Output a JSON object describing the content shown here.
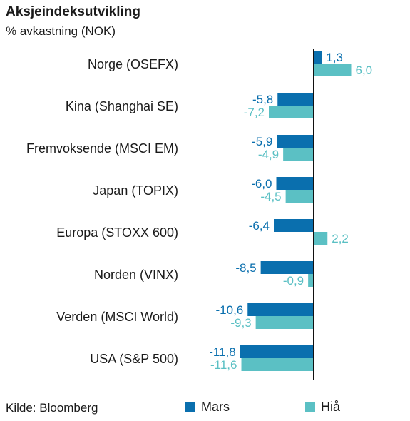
{
  "title": "Aksjeindeksutvikling",
  "subtitle": "% avkastning (NOK)",
  "source": "Kilde: Bloomberg",
  "colors": {
    "mars": "#0a6fae",
    "hia": "#5bc0c4",
    "axis": "#111111"
  },
  "chart_data": {
    "type": "bar",
    "orientation": "horizontal",
    "categories": [
      "Norge (OSEFX)",
      "Kina (Shanghai SE)",
      "Fremvoksende (MSCI EM)",
      "Japan (TOPIX)",
      "Europa (STOXX 600)",
      "Norden (VINX)",
      "Verden (MSCI World)",
      "USA (S&P 500)"
    ],
    "series": [
      {
        "name": "Mars",
        "values": [
          1.3,
          -5.8,
          -5.9,
          -6.0,
          -6.4,
          -8.5,
          -10.6,
          -11.8
        ],
        "labels": [
          "1,3",
          "-5,8",
          "-5,9",
          "-6,0",
          "-6,4",
          "-8,5",
          "-10,6",
          "-11,8"
        ]
      },
      {
        "name": "Hiå",
        "values": [
          6.0,
          -7.2,
          -4.9,
          -4.5,
          2.2,
          -0.9,
          -9.3,
          -11.6
        ],
        "labels": [
          "6,0",
          "-7,2",
          "-4,9",
          "-4,5",
          "2,2",
          "-0,9",
          "-9,3",
          "-11,6"
        ]
      }
    ],
    "legend_position": "bottom-right"
  }
}
